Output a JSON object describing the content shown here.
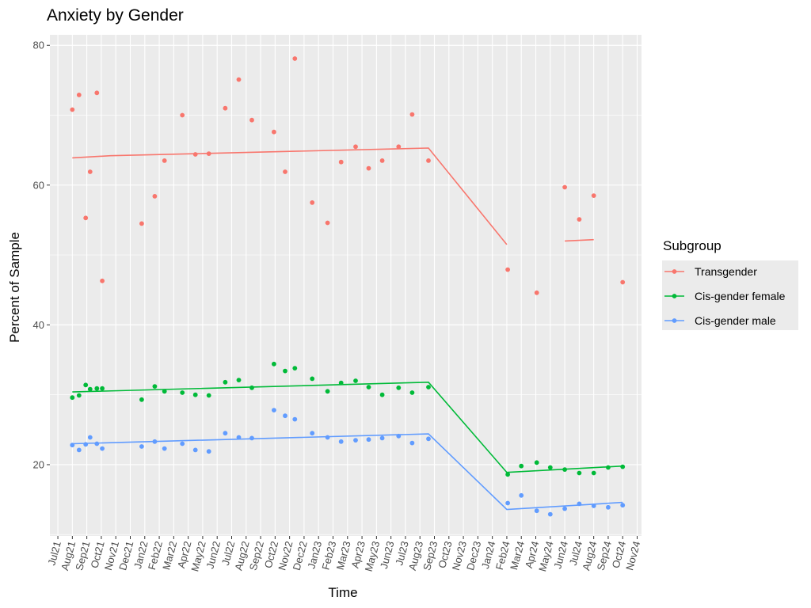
{
  "chart_data": {
    "type": "scatter",
    "title": "Anxiety by Gender",
    "xlabel": "Time",
    "ylabel": "Percent of Sample",
    "x_tick_labels": [
      "Jul21",
      "Aug21",
      "Sep21",
      "Oct21",
      "Nov21",
      "Dec21",
      "Jan22",
      "Feb22",
      "Mar22",
      "Apr22",
      "May22",
      "Jun22",
      "Jul22",
      "Aug22",
      "Sep22",
      "Oct22",
      "Nov22",
      "Dec22",
      "Jan23",
      "Feb23",
      "Mar23",
      "Apr23",
      "May23",
      "Jun23",
      "Jul23",
      "Aug23",
      "Sep23",
      "Oct23",
      "Nov23",
      "Dec23",
      "Jan24",
      "Feb24",
      "Mar24",
      "Apr24",
      "May24",
      "Jun24",
      "Jul24",
      "Aug24",
      "Sep24",
      "Oct24",
      "Nov24"
    ],
    "y_ticks": [
      20,
      40,
      60,
      80
    ],
    "ylim": [
      9.8,
      81.5
    ],
    "grid": true,
    "legend": {
      "title": "Subgroup",
      "placement": "right"
    },
    "series": [
      {
        "name": "Transgender",
        "color": "#f8766d",
        "points": [
          [
            "2021-08-01",
            70.8
          ],
          [
            "2021-08-15",
            72.9
          ],
          [
            "2021-08-29",
            55.3
          ],
          [
            "2021-09-08",
            61.9
          ],
          [
            "2021-09-22",
            73.2
          ],
          [
            "2021-10-03",
            46.3
          ],
          [
            "2021-12-25",
            54.5
          ],
          [
            "2022-01-22",
            58.4
          ],
          [
            "2022-02-12",
            63.5
          ],
          [
            "2022-03-19",
            70.0
          ],
          [
            "2022-04-16",
            64.4
          ],
          [
            "2022-05-14",
            64.5
          ],
          [
            "2022-06-18",
            71.0
          ],
          [
            "2022-07-16",
            75.1
          ],
          [
            "2022-08-13",
            69.3
          ],
          [
            "2022-09-29",
            67.6
          ],
          [
            "2022-10-22",
            61.9
          ],
          [
            "2022-11-12",
            78.1
          ],
          [
            "2022-12-18",
            57.5
          ],
          [
            "2023-01-20",
            54.6
          ],
          [
            "2023-02-18",
            63.3
          ],
          [
            "2023-03-18",
            65.5
          ],
          [
            "2023-04-15",
            62.4
          ],
          [
            "2023-05-13",
            63.5
          ],
          [
            "2023-06-17",
            65.5
          ],
          [
            "2023-07-15",
            70.1
          ],
          [
            "2023-08-19",
            63.5
          ],
          [
            "2024-02-03",
            47.9
          ],
          [
            "2024-04-03",
            44.6
          ],
          [
            "2024-06-01",
            59.7
          ],
          [
            "2024-07-01",
            55.1
          ],
          [
            "2024-08-01",
            58.5
          ],
          [
            "2024-10-01",
            46.1
          ]
        ],
        "trend": [
          [
            [
              "2021-08-01",
              63.9
            ],
            [
              "2021-10-20",
              64.2
            ],
            [
              "2023-08-19",
              65.3
            ],
            [
              "2024-02-01",
              51.5
            ]
          ],
          [
            [
              "2024-06-01",
              52.0
            ],
            [
              "2024-08-01",
              52.2
            ]
          ]
        ]
      },
      {
        "name": "Cis-gender female",
        "color": "#00ba38",
        "points": [
          [
            "2021-08-01",
            29.6
          ],
          [
            "2021-08-15",
            29.9
          ],
          [
            "2021-08-29",
            31.4
          ],
          [
            "2021-09-08",
            30.8
          ],
          [
            "2021-09-22",
            30.9
          ],
          [
            "2021-10-03",
            30.9
          ],
          [
            "2021-12-25",
            29.3
          ],
          [
            "2022-01-22",
            31.2
          ],
          [
            "2022-02-12",
            30.5
          ],
          [
            "2022-03-19",
            30.3
          ],
          [
            "2022-04-16",
            30.0
          ],
          [
            "2022-05-14",
            29.9
          ],
          [
            "2022-06-18",
            31.8
          ],
          [
            "2022-07-16",
            32.1
          ],
          [
            "2022-08-13",
            31.0
          ],
          [
            "2022-09-29",
            34.4
          ],
          [
            "2022-10-22",
            33.4
          ],
          [
            "2022-11-12",
            33.8
          ],
          [
            "2022-12-18",
            32.3
          ],
          [
            "2023-01-20",
            30.5
          ],
          [
            "2023-02-18",
            31.7
          ],
          [
            "2023-03-18",
            32.0
          ],
          [
            "2023-04-15",
            31.1
          ],
          [
            "2023-05-13",
            30.0
          ],
          [
            "2023-06-17",
            31.0
          ],
          [
            "2023-07-15",
            30.3
          ],
          [
            "2023-08-19",
            31.1
          ],
          [
            "2024-02-03",
            18.6
          ],
          [
            "2024-03-01",
            19.8
          ],
          [
            "2024-04-03",
            20.3
          ],
          [
            "2024-05-01",
            19.6
          ],
          [
            "2024-06-01",
            19.3
          ],
          [
            "2024-07-01",
            18.8
          ],
          [
            "2024-08-01",
            18.8
          ],
          [
            "2024-09-01",
            19.6
          ],
          [
            "2024-10-01",
            19.7
          ]
        ],
        "trend": [
          [
            [
              "2021-08-01",
              30.4
            ],
            [
              "2023-08-19",
              31.8
            ],
            [
              "2024-02-01",
              18.9
            ],
            [
              "2024-10-01",
              19.8
            ]
          ]
        ]
      },
      {
        "name": "Cis-gender male",
        "color": "#619cff",
        "points": [
          [
            "2021-08-01",
            22.8
          ],
          [
            "2021-08-15",
            22.1
          ],
          [
            "2021-08-29",
            22.9
          ],
          [
            "2021-09-08",
            23.9
          ],
          [
            "2021-09-22",
            23.0
          ],
          [
            "2021-10-03",
            22.3
          ],
          [
            "2021-12-25",
            22.6
          ],
          [
            "2022-01-22",
            23.3
          ],
          [
            "2022-02-12",
            22.3
          ],
          [
            "2022-03-19",
            23.0
          ],
          [
            "2022-04-16",
            22.1
          ],
          [
            "2022-05-14",
            21.9
          ],
          [
            "2022-06-18",
            24.5
          ],
          [
            "2022-07-16",
            23.9
          ],
          [
            "2022-08-13",
            23.8
          ],
          [
            "2022-09-29",
            27.8
          ],
          [
            "2022-10-22",
            27.0
          ],
          [
            "2022-11-12",
            26.5
          ],
          [
            "2022-12-18",
            24.5
          ],
          [
            "2023-01-20",
            23.9
          ],
          [
            "2023-02-18",
            23.3
          ],
          [
            "2023-03-18",
            23.5
          ],
          [
            "2023-04-15",
            23.6
          ],
          [
            "2023-05-13",
            23.8
          ],
          [
            "2023-06-17",
            24.1
          ],
          [
            "2023-07-15",
            23.1
          ],
          [
            "2023-08-19",
            23.7
          ],
          [
            "2024-02-03",
            14.5
          ],
          [
            "2024-03-01",
            15.6
          ],
          [
            "2024-04-03",
            13.4
          ],
          [
            "2024-05-01",
            12.9
          ],
          [
            "2024-06-01",
            13.7
          ],
          [
            "2024-07-01",
            14.4
          ],
          [
            "2024-08-01",
            14.1
          ],
          [
            "2024-09-01",
            13.9
          ],
          [
            "2024-10-01",
            14.2
          ]
        ],
        "trend": [
          [
            [
              "2021-08-01",
              23.0
            ],
            [
              "2023-08-19",
              24.4
            ],
            [
              "2024-02-01",
              13.6
            ],
            [
              "2024-10-01",
              14.6
            ]
          ]
        ]
      }
    ]
  }
}
